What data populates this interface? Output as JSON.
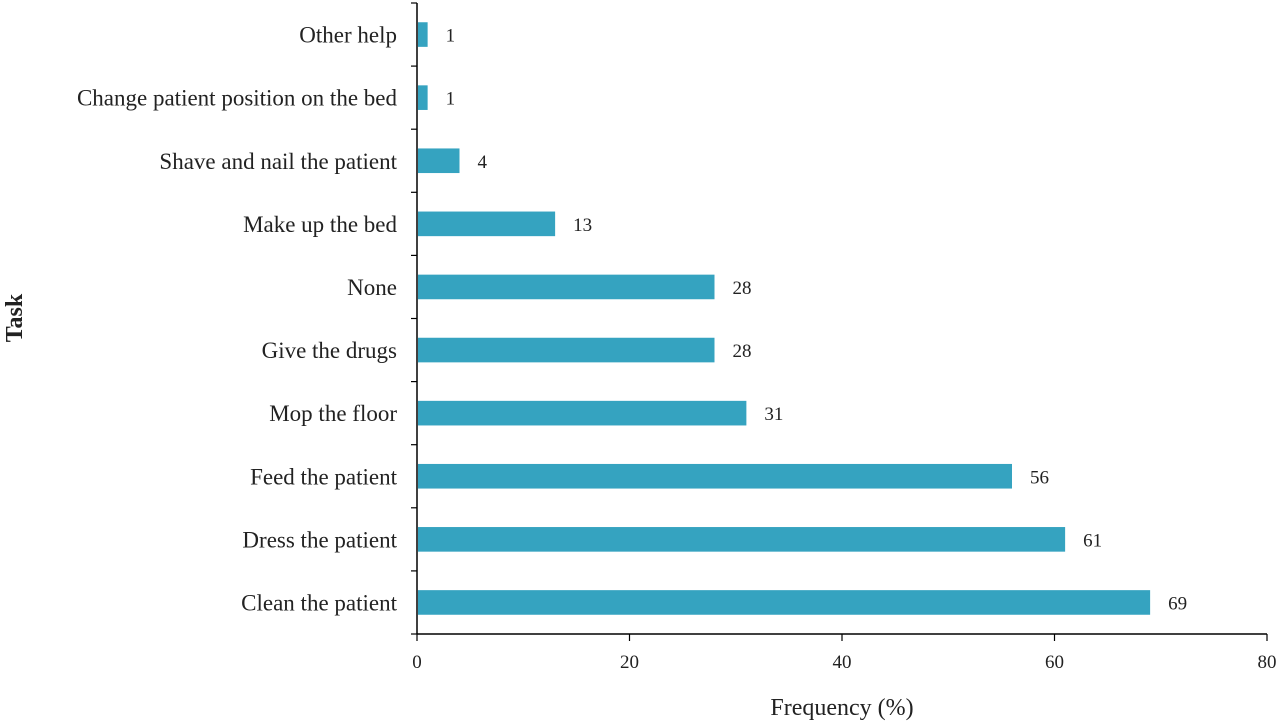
{
  "chart_data": {
    "type": "bar",
    "orientation": "horizontal",
    "categories": [
      "Clean the patient",
      "Dress the patient",
      "Feed the patient",
      "Mop the floor",
      "Give the drugs",
      "None",
      "Make up the bed",
      "Shave and nail the patient",
      "Change patient position on the bed",
      "Other help"
    ],
    "values": [
      69,
      61,
      56,
      31,
      28,
      28,
      13,
      4,
      1,
      1
    ],
    "data_labels": [
      "69",
      "61",
      "56",
      "31",
      "28",
      "28",
      "13",
      "4",
      "1",
      "1"
    ],
    "xlabel": "Frequency (%)",
    "ylabel": "Task",
    "xlim": [
      0,
      80
    ],
    "xticks": [
      "0",
      "20",
      "40",
      "60",
      "80"
    ],
    "bar_color": "#35A3C0",
    "grid": false,
    "legend": "none"
  }
}
